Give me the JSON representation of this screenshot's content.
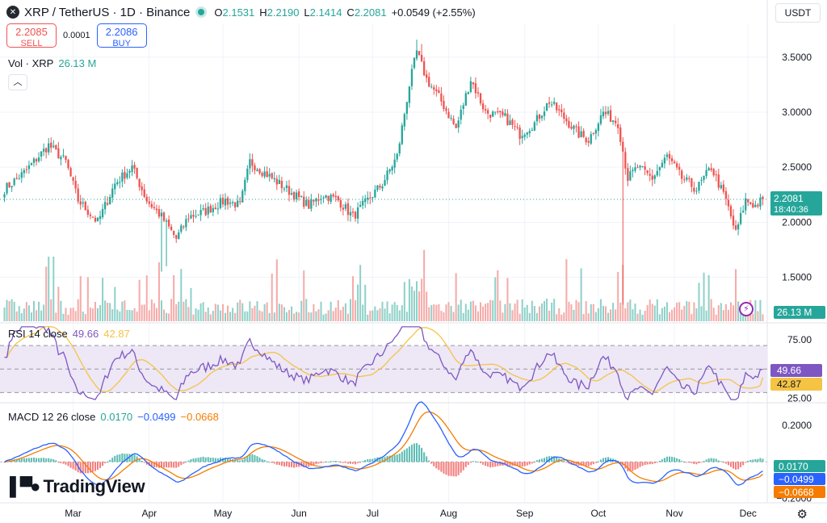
{
  "header": {
    "symbol": "XRP / TetherUS · 1D · Binance",
    "logo": "✕",
    "open_label": "O",
    "open": "2.1531",
    "high_label": "H",
    "high": "2.2190",
    "low_label": "L",
    "low": "2.1414",
    "close_label": "C",
    "close": "2.2081",
    "change": "+0.0549 (+2.55%)",
    "currency": "USDT"
  },
  "trade": {
    "sell_price": "2.2085",
    "sell_label": "SELL",
    "spread": "0.0001",
    "buy_price": "2.2086",
    "buy_label": "BUY"
  },
  "volume": {
    "label": "Vol · XRP",
    "value": "26.13 M",
    "axis_badge": "26.13 M"
  },
  "price_badge": {
    "price": "2.2081",
    "countdown": "18:40:36"
  },
  "rsi": {
    "label": "RSI 14 close",
    "value": "49.66",
    "ma": "42.87"
  },
  "macd": {
    "label": "MACD 12 26 close",
    "hist": "0.0170",
    "macd": "−0.0499",
    "signal": "−0.0668"
  },
  "branding": "TradingView",
  "icons": {
    "collapse": "chevron-up-icon",
    "flash": "lightning-icon",
    "settings": "gear-icon"
  },
  "colors": {
    "up": "#26a69a",
    "down": "#ef5350",
    "rsi": "#7e57c2",
    "rsi_ma": "#f5c445",
    "macd": "#2962ff",
    "signal": "#f57c00"
  },
  "chart_data": {
    "type": "candlestick",
    "title": "XRP / TetherUS · 1D · Binance",
    "price_axis": {
      "ticks": [
        "3.5000",
        "3.0000",
        "2.5000",
        "2.0000",
        "1.5000"
      ],
      "values": [
        3.5,
        3.0,
        2.5,
        2.0,
        1.5
      ],
      "range": [
        1.1,
        3.8
      ]
    },
    "rsi_axis": {
      "ticks": [
        "75.00",
        "25.00"
      ],
      "values": [
        75,
        25
      ],
      "upper": 70,
      "middle": 50,
      "lower": 30,
      "range": [
        22,
        88
      ]
    },
    "macd_axis": {
      "ticks": [
        "0.2000",
        "−0.2000"
      ],
      "values": [
        0.2,
        -0.2
      ],
      "range": [
        -0.22,
        0.32
      ]
    },
    "months": [
      "Mar",
      "Apr",
      "May",
      "Jun",
      "Jul",
      "Aug",
      "Sep",
      "Oct",
      "Nov",
      "Dec"
    ],
    "month_day_index": [
      28,
      59,
      89,
      120,
      150,
      181,
      212,
      242,
      273,
      303
    ],
    "days": 310,
    "close_anchors": [
      [
        0,
        2.3
      ],
      [
        8,
        2.45
      ],
      [
        18,
        2.7
      ],
      [
        25,
        2.55
      ],
      [
        30,
        2.2
      ],
      [
        38,
        2.0
      ],
      [
        45,
        2.35
      ],
      [
        52,
        2.5
      ],
      [
        58,
        2.2
      ],
      [
        64,
        2.05
      ],
      [
        70,
        1.85
      ],
      [
        75,
        2.05
      ],
      [
        82,
        2.1
      ],
      [
        90,
        2.2
      ],
      [
        96,
        2.15
      ],
      [
        100,
        2.55
      ],
      [
        106,
        2.45
      ],
      [
        112,
        2.35
      ],
      [
        118,
        2.25
      ],
      [
        124,
        2.15
      ],
      [
        130,
        2.25
      ],
      [
        136,
        2.2
      ],
      [
        142,
        2.05
      ],
      [
        148,
        2.2
      ],
      [
        154,
        2.35
      ],
      [
        160,
        2.6
      ],
      [
        165,
        3.25
      ],
      [
        168,
        3.55
      ],
      [
        172,
        3.3
      ],
      [
        178,
        3.1
      ],
      [
        184,
        2.85
      ],
      [
        190,
        3.3
      ],
      [
        196,
        3.0
      ],
      [
        204,
        2.95
      ],
      [
        210,
        2.8
      ],
      [
        216,
        2.9
      ],
      [
        222,
        3.1
      ],
      [
        228,
        2.95
      ],
      [
        234,
        2.8
      ],
      [
        238,
        2.75
      ],
      [
        244,
        3.0
      ],
      [
        250,
        2.9
      ],
      [
        254,
        2.4
      ],
      [
        258,
        2.5
      ],
      [
        264,
        2.4
      ],
      [
        270,
        2.6
      ],
      [
        276,
        2.4
      ],
      [
        282,
        2.3
      ],
      [
        288,
        2.5
      ],
      [
        294,
        2.2
      ],
      [
        298,
        1.9
      ],
      [
        302,
        2.2
      ],
      [
        306,
        2.15
      ],
      [
        309,
        2.2081
      ]
    ],
    "volume_unit": "M",
    "last_volume": 26.13,
    "last_close": 2.2081,
    "rsi_last": 49.66,
    "rsi_ma_last": 42.87,
    "macd_last": -0.0499,
    "signal_last": -0.0668,
    "hist_last": 0.017
  }
}
